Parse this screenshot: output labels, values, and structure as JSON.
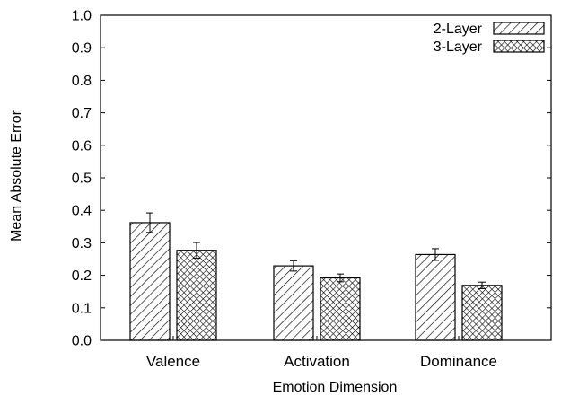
{
  "chart_data": {
    "type": "bar",
    "xlabel": "Emotion Dimension",
    "ylabel": "Mean Absolute Error",
    "ylim": [
      0.0,
      1.0
    ],
    "yticks": [
      "0.0",
      "0.1",
      "0.2",
      "0.3",
      "0.4",
      "0.5",
      "0.6",
      "0.7",
      "0.8",
      "0.9",
      "1.0"
    ],
    "categories": [
      "Valence",
      "Activation",
      "Dominance"
    ],
    "series": [
      {
        "name": "2-Layer",
        "pattern": "diagonal-hatch",
        "values": [
          0.362,
          0.229,
          0.264
        ],
        "errors": [
          0.03,
          0.016,
          0.018
        ]
      },
      {
        "name": "3-Layer",
        "pattern": "crosshatch",
        "values": [
          0.277,
          0.192,
          0.169
        ],
        "errors": [
          0.024,
          0.012,
          0.01
        ]
      }
    ],
    "legend_position": "top-right",
    "grid": false,
    "colors": {
      "axis": "#000000",
      "bar_fill": "#ffffff",
      "pattern": "#000000"
    }
  }
}
